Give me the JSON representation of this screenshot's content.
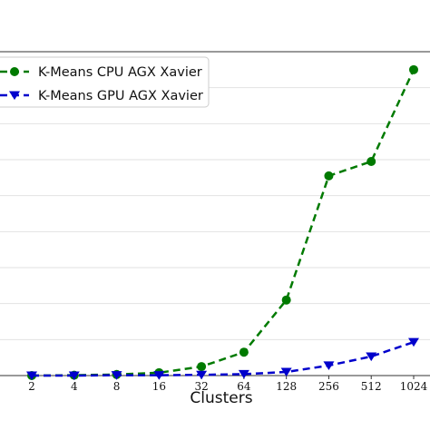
{
  "chart_data": {
    "type": "line",
    "title": "",
    "xlabel": "Clusters",
    "ylabel": "",
    "categories": [
      "2",
      "4",
      "8",
      "16",
      "32",
      "64",
      "128",
      "256",
      "512",
      "1024"
    ],
    "ylim": [
      0,
      9
    ],
    "grid": "horizontal",
    "legend_position": "top-left",
    "series": [
      {
        "name": "K-Means CPU AGX Xavier",
        "color": "#007a00",
        "marker": "circle",
        "line_style": "dashed",
        "values": [
          0.0,
          0.01,
          0.03,
          0.08,
          0.25,
          0.65,
          2.1,
          5.55,
          5.95,
          8.5
        ]
      },
      {
        "name": "K-Means GPU AGX Xavier",
        "color": "#0000cc",
        "marker": "triangle-down",
        "line_style": "dashed",
        "values": [
          0.0,
          0.0,
          0.01,
          0.01,
          0.02,
          0.04,
          0.1,
          0.28,
          0.53,
          0.93
        ]
      }
    ]
  }
}
